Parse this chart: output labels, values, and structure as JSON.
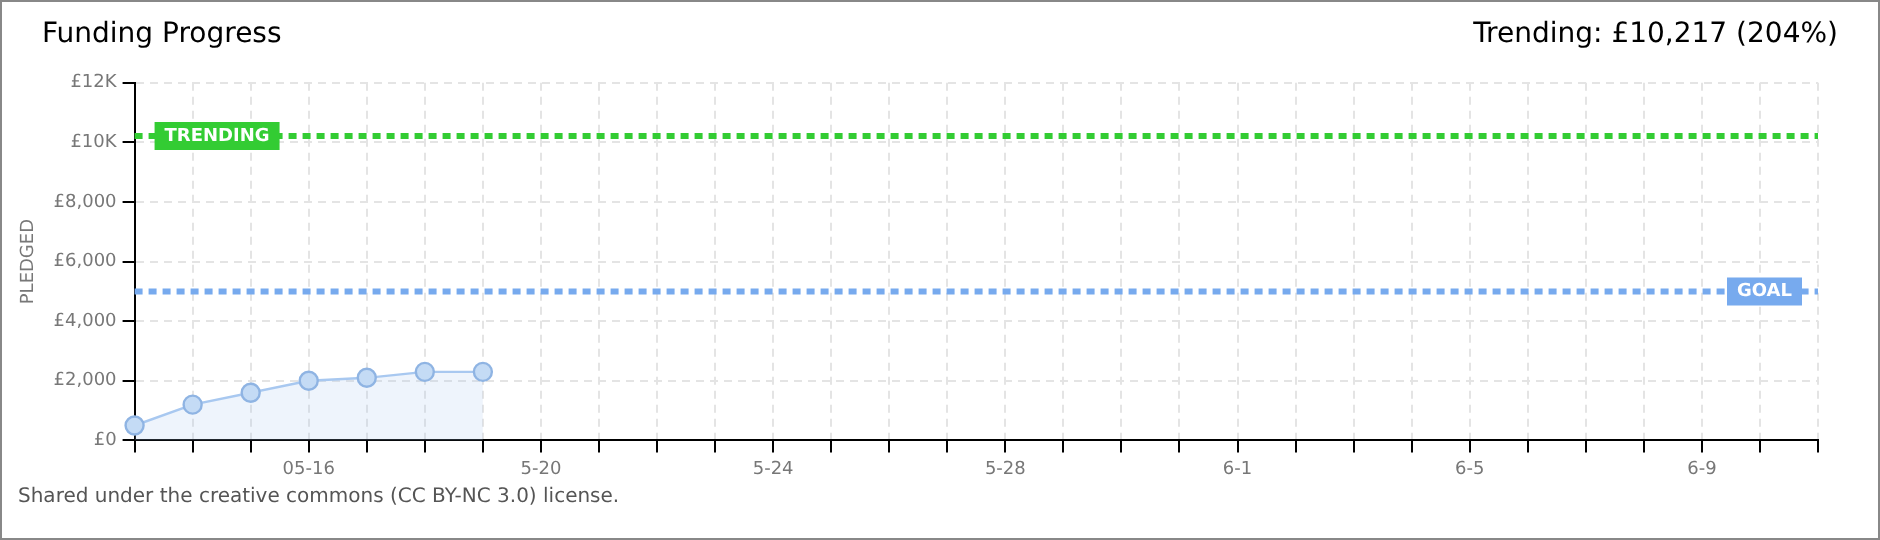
{
  "chart_data": {
    "type": "area",
    "title": "Funding Progress",
    "subtitle": "Trending: £10,217 (204%)",
    "ylabel": "PLEDGED",
    "categories": [
      null,
      null,
      null,
      "05-16",
      null,
      null,
      null,
      "5-20",
      null,
      null,
      null,
      "5-24",
      null,
      null,
      null,
      "5-28",
      null,
      null,
      null,
      "6-1",
      null,
      null,
      null,
      "6-5",
      null,
      null,
      null,
      "6-9",
      null,
      null
    ],
    "series": [
      {
        "color": "#a8c8f0",
        "values": [
          500,
          1200,
          1600,
          2000,
          2100,
          2300,
          2300,
          null,
          null,
          null,
          null,
          null,
          null,
          null,
          null,
          null,
          null,
          null,
          null,
          null,
          null,
          null,
          null,
          null,
          null,
          null,
          null,
          null,
          null,
          null
        ]
      }
    ],
    "ylim": [
      0,
      12000
    ],
    "yticks": [
      {
        "value": 0,
        "label": "£0"
      },
      {
        "value": 2000,
        "label": "£2,000"
      },
      {
        "value": 4000,
        "label": "£4,000"
      },
      {
        "value": 6000,
        "label": "£6,000"
      },
      {
        "value": 8000,
        "label": "£8,000"
      },
      {
        "value": 10000,
        "label": "£10K"
      },
      {
        "value": 12000,
        "label": "£12K"
      }
    ],
    "ref_lines": [
      {
        "axis": "y",
        "value": 5000,
        "label": "GOAL",
        "color": "#77aaee",
        "line_style": "dashed"
      },
      {
        "axis": "y",
        "value": 10217,
        "label": "TRENDING",
        "color": "#33cc33",
        "line_style": "dashed"
      }
    ],
    "grid": true,
    "legend": false,
    "marker": "circle",
    "line_style": "solid",
    "annotations": [
      "Shared under the creative commons (CC BY-NC 3.0) license."
    ]
  }
}
